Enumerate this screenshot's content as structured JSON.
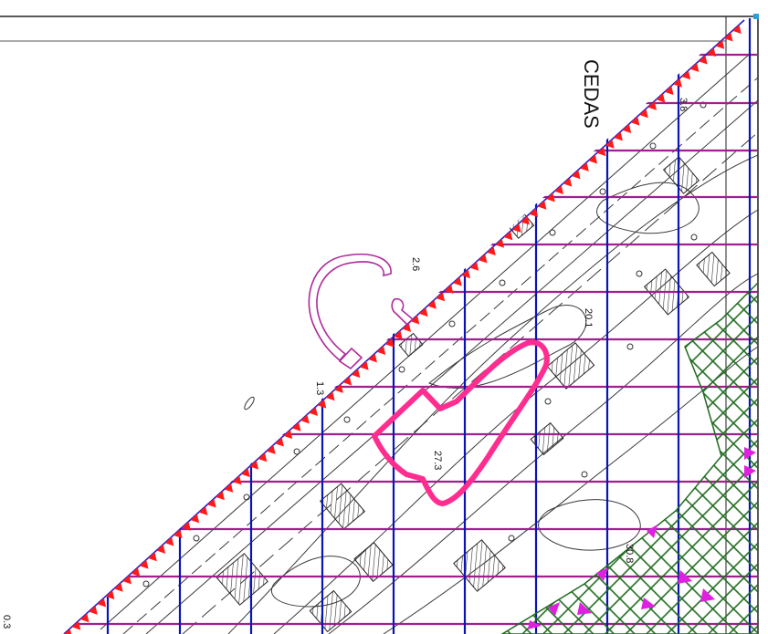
{
  "map": {
    "place_label": "CEDAS",
    "elevations": [
      "2.6",
      "1.3",
      "20.1",
      "27.3",
      "30.8",
      "3.8",
      "0.3"
    ],
    "colors": {
      "coast_marker": "#ff1a1a",
      "coast_line": "#1a1ad6",
      "grid_vertical": "#0a14b4",
      "grid_horizontal": "#a0208f",
      "highlight_polygon": "#ff2d8f",
      "breakwater": "#b0289a",
      "vegetation_hatch": "#1f6b1f",
      "triangle_markers": "#e020e0",
      "contours": "#3a3a3a"
    },
    "icons": [
      "coastline-triangle-icon",
      "hatched-building-icon",
      "marker-triangle-icon"
    ]
  }
}
